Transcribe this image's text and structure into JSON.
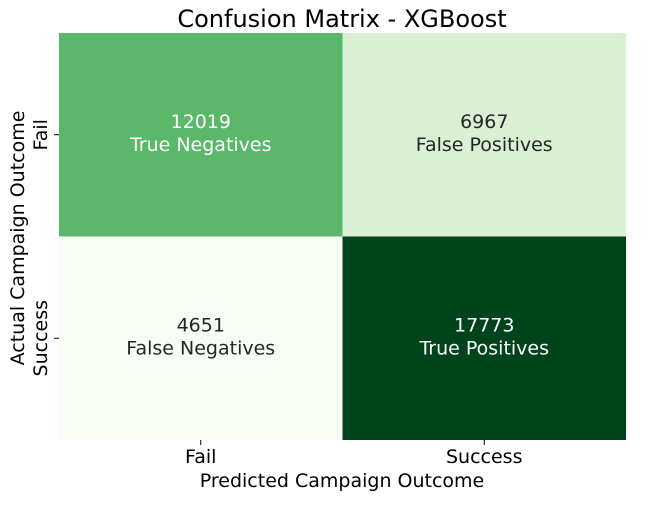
{
  "chart_data": {
    "type": "heatmap",
    "title": "Confusion Matrix - XGBoost",
    "xlabel": "Predicted Campaign Outcome",
    "ylabel": "Actual Campaign Outcome",
    "x_categories": [
      "Fail",
      "Success"
    ],
    "y_categories": [
      "Fail",
      "Success"
    ],
    "values": [
      [
        12019,
        6967
      ],
      [
        4651,
        17773
      ]
    ],
    "cell_labels": [
      [
        "True Negatives",
        "False Positives"
      ],
      [
        "False Negatives",
        "True Positives"
      ]
    ],
    "colorscale": "Greens",
    "colors": {
      "low": "#f7fcf5",
      "mid": "#a1d99b",
      "high": "#00441b"
    }
  }
}
